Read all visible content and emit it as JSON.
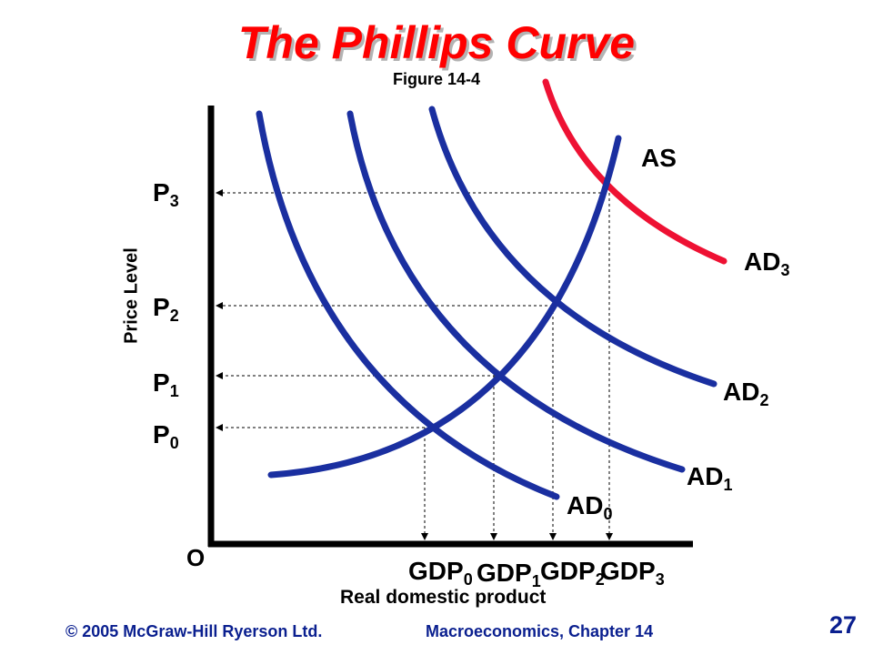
{
  "slide": {
    "title": "The Phillips Curve",
    "subtitle": "Figure 14-4",
    "page_number": "27",
    "footer_left": "© 2005 McGraw-Hill Ryerson Ltd.",
    "footer_right": "Macroeconomics, Chapter 14"
  },
  "diagram": {
    "y_axis_label": "Price Level",
    "x_axis_label": "Real domestic product",
    "origin_label": "O",
    "curves": [
      {
        "label": "AS",
        "color": "#1a2fa0"
      },
      {
        "label": "AD",
        "sub": "0",
        "color": "#1a2fa0"
      },
      {
        "label": "AD",
        "sub": "1",
        "color": "#1a2fa0"
      },
      {
        "label": "AD",
        "sub": "2",
        "color": "#1a2fa0"
      },
      {
        "label": "AD",
        "sub": "3",
        "color": "#ee1133"
      }
    ],
    "price_levels": [
      {
        "label": "P",
        "sub": "0"
      },
      {
        "label": "P",
        "sub": "1"
      },
      {
        "label": "P",
        "sub": "2"
      },
      {
        "label": "P",
        "sub": "3"
      }
    ],
    "output_levels": [
      {
        "label": "GDP",
        "sub": "0"
      },
      {
        "label": "GDP",
        "sub": "1"
      },
      {
        "label": "GDP",
        "sub": "2"
      },
      {
        "label": "GDP",
        "sub": "3"
      }
    ]
  }
}
